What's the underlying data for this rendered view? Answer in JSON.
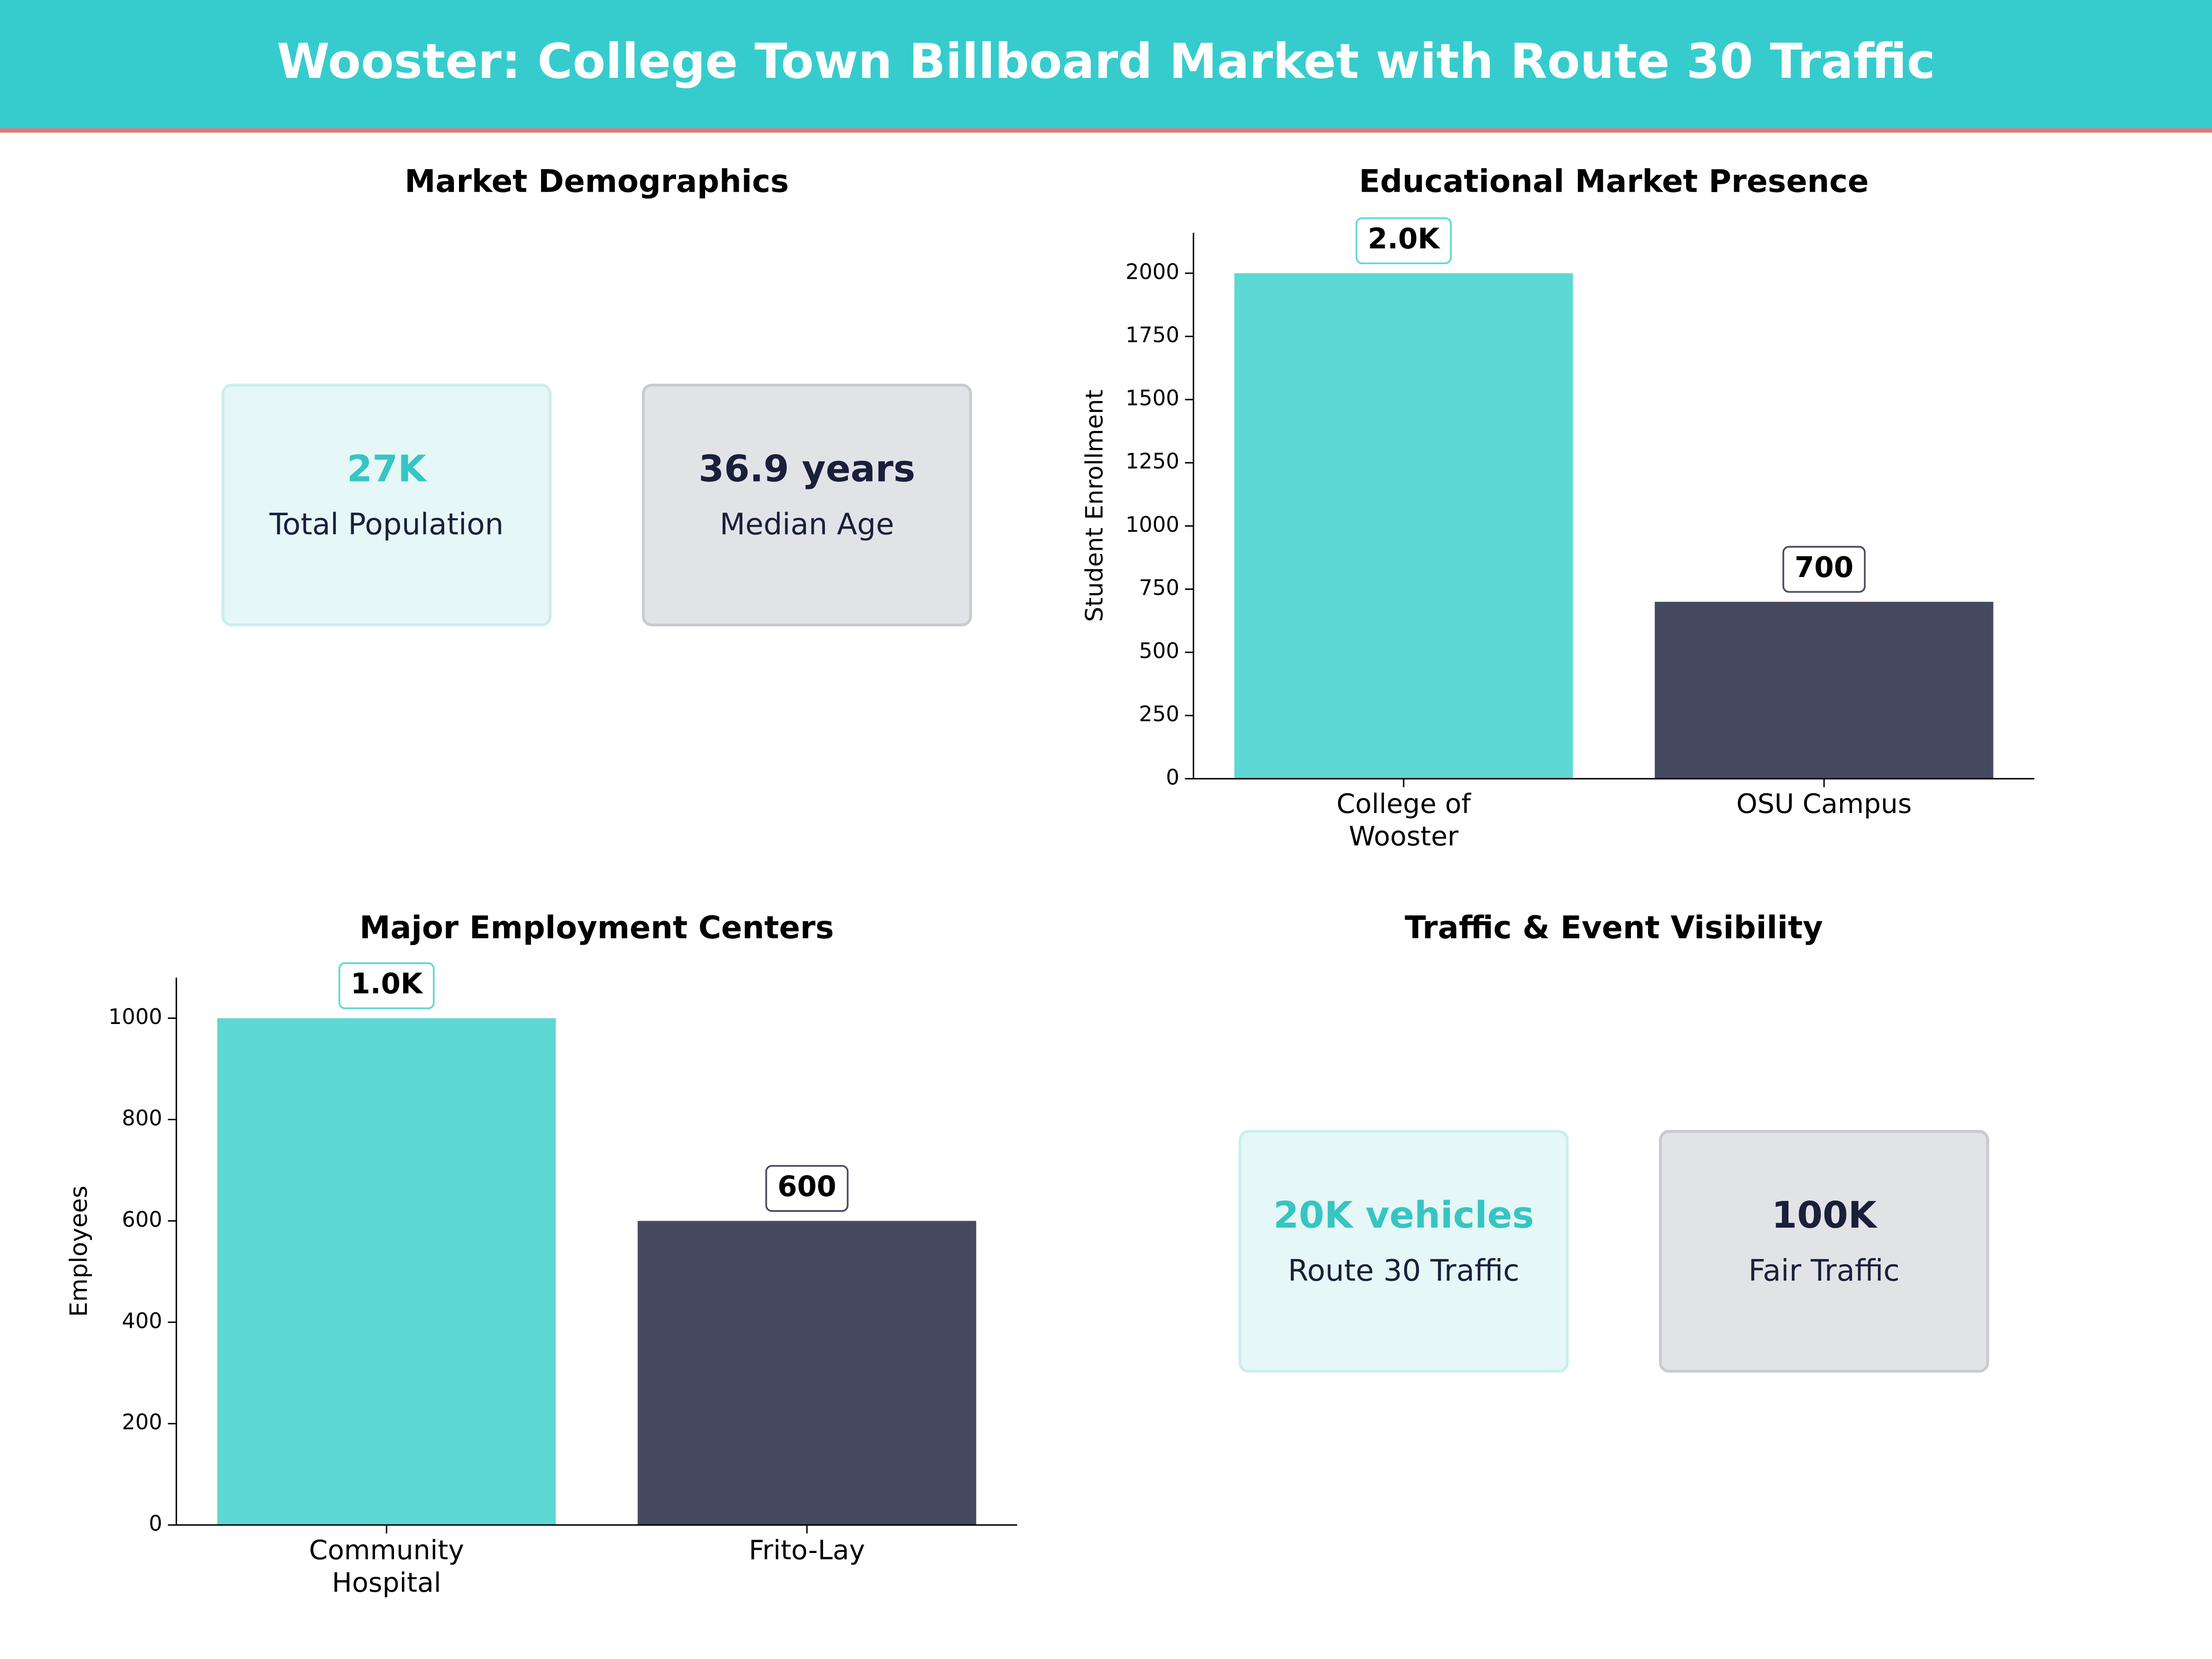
{
  "header": {
    "title": "Wooster: College Town Billboard Market with Route 30 Traffic"
  },
  "demographics": {
    "title": "Market Demographics",
    "cards": [
      {
        "value": "27K",
        "label": "Total Population"
      },
      {
        "value": "36.9 years",
        "label": "Median Age"
      }
    ]
  },
  "chart_data": [
    {
      "type": "bar",
      "title": "Educational Market Presence",
      "ylabel": "Student Enrollment",
      "categories": [
        "College of\nWooster",
        "OSU Campus"
      ],
      "values": [
        2000,
        700
      ],
      "value_labels": [
        "2.0K",
        "700"
      ],
      "colors": [
        "#5dd8d5",
        "#464a61"
      ],
      "ylim": [
        0,
        2160
      ],
      "yticks": [
        0,
        250,
        500,
        750,
        1000,
        1250,
        1500,
        1750,
        2000
      ]
    },
    {
      "type": "bar",
      "title": "Major Employment Centers",
      "ylabel": "Employees",
      "categories": [
        "Community\nHospital",
        "Frito-Lay"
      ],
      "values": [
        1000,
        600
      ],
      "value_labels": [
        "1.0K",
        "600"
      ],
      "colors": [
        "#5dd8d5",
        "#464a61"
      ],
      "ylim": [
        0,
        1080
      ],
      "yticks": [
        0,
        200,
        400,
        600,
        800,
        1000
      ]
    }
  ],
  "traffic": {
    "title": "Traffic & Event Visibility",
    "cards": [
      {
        "value": "20K vehicles",
        "label": "Route 30 Traffic"
      },
      {
        "value": "100K",
        "label": "Fair Traffic"
      }
    ]
  }
}
